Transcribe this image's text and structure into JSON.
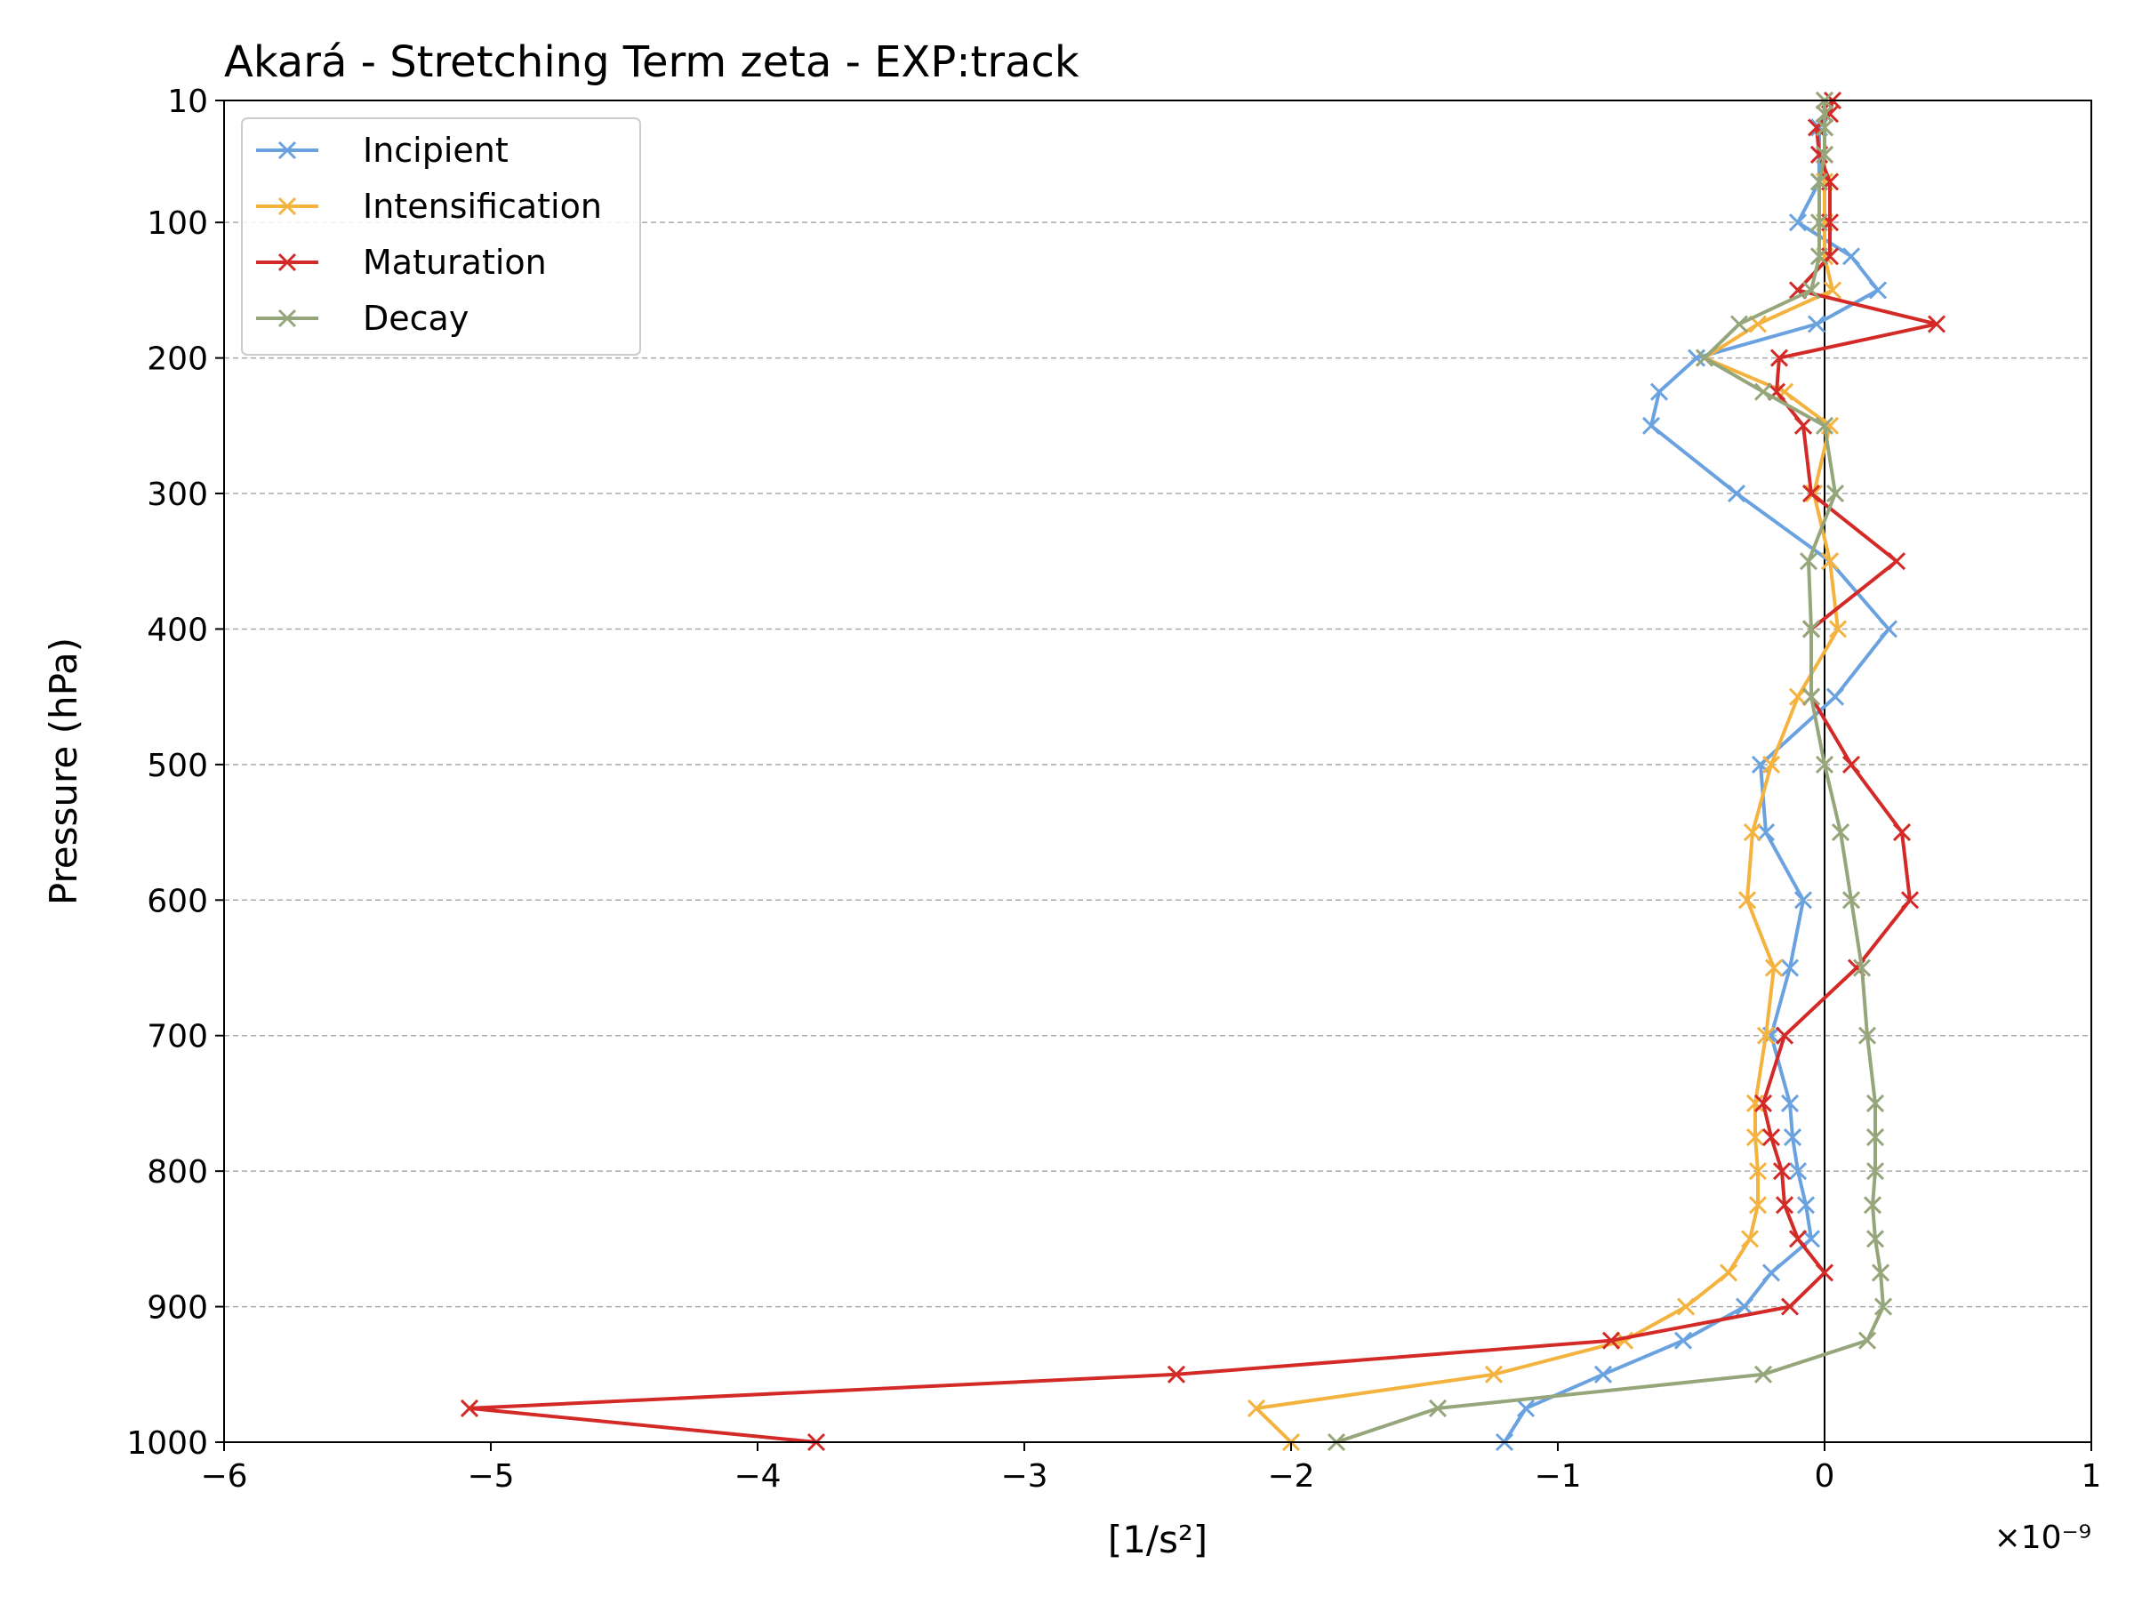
{
  "chart_data": {
    "type": "line",
    "title": "Akará - Stretching Term zeta - EXP:track",
    "xlabel": "[1/s²]",
    "ylabel": "Pressure (hPa)",
    "x_scale_label": "×10⁻⁹",
    "xlim": [
      -6,
      1
    ],
    "ylim": [
      1000,
      10
    ],
    "y_inverted": true,
    "x_ticks": [
      -6,
      -5,
      -4,
      -3,
      -2,
      -1,
      0,
      1
    ],
    "x_tick_labels": [
      "−6",
      "−5",
      "−4",
      "−3",
      "−2",
      "−1",
      "0",
      "1"
    ],
    "y_ticks": [
      10,
      100,
      200,
      300,
      400,
      500,
      600,
      700,
      800,
      900,
      1000
    ],
    "y_tick_labels": [
      "10",
      "100",
      "200",
      "300",
      "400",
      "500",
      "600",
      "700",
      "800",
      "900",
      "1000"
    ],
    "grid": "horizontal dashed",
    "legend_position": "top-left",
    "zero_line": true,
    "levels": [
      10,
      20,
      30,
      50,
      70,
      100,
      125,
      150,
      175,
      200,
      225,
      250,
      300,
      350,
      400,
      450,
      500,
      550,
      600,
      650,
      700,
      750,
      775,
      800,
      825,
      850,
      875,
      900,
      925,
      950,
      975,
      1000
    ],
    "series": [
      {
        "name": "Incipient",
        "color": "#6aa2e0",
        "values": [
          0.0,
          0.0,
          -0.02,
          -0.02,
          -0.02,
          -0.1,
          0.1,
          0.2,
          -0.03,
          -0.48,
          -0.62,
          -0.65,
          -0.33,
          0.02,
          0.24,
          0.04,
          -0.24,
          -0.22,
          -0.08,
          -0.13,
          -0.2,
          -0.13,
          -0.12,
          -0.1,
          -0.07,
          -0.05,
          -0.2,
          -0.3,
          -0.53,
          -0.83,
          -1.12,
          -1.2
        ]
      },
      {
        "name": "Intensification",
        "color": "#f4b23e",
        "values": [
          0.0,
          0.0,
          0.0,
          0.0,
          0.0,
          0.0,
          0.0,
          0.03,
          -0.25,
          -0.45,
          -0.15,
          0.02,
          -0.04,
          0.02,
          0.05,
          -0.1,
          -0.2,
          -0.27,
          -0.29,
          -0.19,
          -0.22,
          -0.26,
          -0.26,
          -0.25,
          -0.25,
          -0.28,
          -0.36,
          -0.52,
          -0.75,
          -1.24,
          -2.13,
          -2.0
        ]
      },
      {
        "name": "Maturation",
        "color": "#d32a27",
        "values": [
          0.03,
          0.02,
          -0.03,
          -0.02,
          0.02,
          0.02,
          0.02,
          -0.1,
          0.42,
          -0.17,
          -0.18,
          -0.08,
          -0.05,
          0.27,
          -0.05,
          -0.05,
          0.1,
          0.29,
          0.32,
          0.12,
          -0.15,
          -0.23,
          -0.2,
          -0.16,
          -0.15,
          -0.1,
          0.0,
          -0.13,
          -0.8,
          -2.43,
          -5.08,
          -3.78
        ]
      },
      {
        "name": "Decay",
        "color": "#95a67b",
        "values": [
          0.0,
          0.0,
          0.0,
          0.0,
          -0.02,
          -0.02,
          -0.02,
          -0.05,
          -0.32,
          -0.45,
          -0.23,
          0.0,
          0.04,
          -0.06,
          -0.05,
          -0.05,
          0.0,
          0.06,
          0.1,
          0.14,
          0.16,
          0.19,
          0.19,
          0.19,
          0.18,
          0.19,
          0.21,
          0.22,
          0.16,
          -0.23,
          -1.45,
          -1.83
        ]
      }
    ]
  }
}
